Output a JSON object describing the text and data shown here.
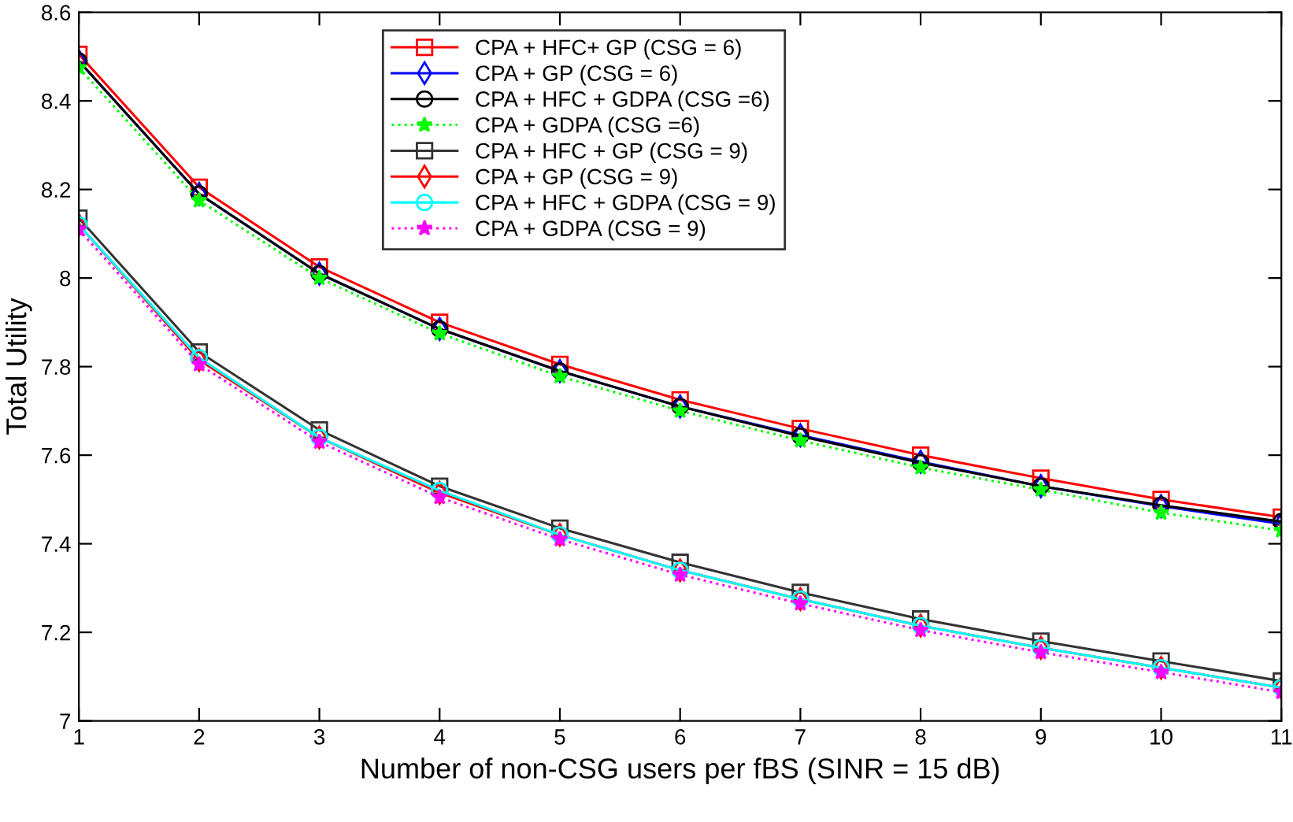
{
  "chart_data": {
    "type": "line",
    "xlabel": "Number of non-CSG users per fBS (SINR = 15 dB)",
    "ylabel": "Total Utility",
    "x": [
      1,
      2,
      3,
      4,
      5,
      6,
      7,
      8,
      9,
      10,
      11
    ],
    "xlim": [
      1,
      11
    ],
    "xticks": [
      1,
      2,
      3,
      4,
      5,
      6,
      7,
      8,
      9,
      10,
      11
    ],
    "ylim": [
      7,
      8.6
    ],
    "yticks": [
      7,
      7.2,
      7.4,
      7.6,
      7.8,
      8,
      8.2,
      8.4,
      8.6
    ],
    "grid": false,
    "legend": "top",
    "series": [
      {
        "name": "CPA + HFC+ GP (CSG = 6)",
        "color": "#ff0000",
        "marker": "square",
        "line_style": "solid",
        "values": [
          8.505,
          8.205,
          8.025,
          7.9,
          7.805,
          7.725,
          7.66,
          7.6,
          7.548,
          7.5,
          7.46
        ]
      },
      {
        "name": "CPA + GP (CSG = 6)",
        "color": "#0000ff",
        "marker": "diamond",
        "line_style": "solid",
        "values": [
          8.49,
          8.19,
          8.01,
          7.885,
          7.79,
          7.71,
          7.645,
          7.585,
          7.53,
          7.485,
          7.445
        ]
      },
      {
        "name": "CPA + HFC + GDPA (CSG =6)",
        "color": "#000000",
        "marker": "circle",
        "line_style": "solid",
        "values": [
          8.49,
          8.19,
          8.01,
          7.885,
          7.79,
          7.71,
          7.643,
          7.583,
          7.53,
          7.487,
          7.45
        ]
      },
      {
        "name": "CPA + GDPA (CSG =6)",
        "color": "#00ff00",
        "marker": "star",
        "line_style": "dotted",
        "values": [
          8.475,
          8.175,
          8.0,
          7.875,
          7.778,
          7.7,
          7.633,
          7.572,
          7.522,
          7.47,
          7.43
        ]
      },
      {
        "name": "CPA + HFC + GP (CSG = 9)",
        "color": "#333333",
        "marker": "square",
        "line_style": "solid",
        "values": [
          8.135,
          7.833,
          7.657,
          7.53,
          7.435,
          7.358,
          7.29,
          7.23,
          7.18,
          7.135,
          7.09
        ]
      },
      {
        "name": "CPA + GP (CSG = 9)",
        "color": "#ff0000",
        "marker": "diamond",
        "line_style": "solid",
        "values": [
          8.12,
          7.815,
          7.64,
          7.515,
          7.42,
          7.34,
          7.275,
          7.215,
          7.165,
          7.12,
          7.075
        ]
      },
      {
        "name": "CPA + HFC + GDPA (CSG = 9)",
        "color": "#00ffff",
        "marker": "circle",
        "line_style": "solid",
        "values": [
          8.12,
          7.82,
          7.64,
          7.52,
          7.42,
          7.34,
          7.275,
          7.215,
          7.165,
          7.12,
          7.075
        ]
      },
      {
        "name": "CPA + GDPA (CSG = 9)",
        "color": "#ff00ff",
        "marker": "star",
        "line_style": "dotted",
        "values": [
          8.11,
          7.805,
          7.63,
          7.505,
          7.41,
          7.33,
          7.265,
          7.205,
          7.155,
          7.11,
          7.065
        ]
      }
    ]
  }
}
